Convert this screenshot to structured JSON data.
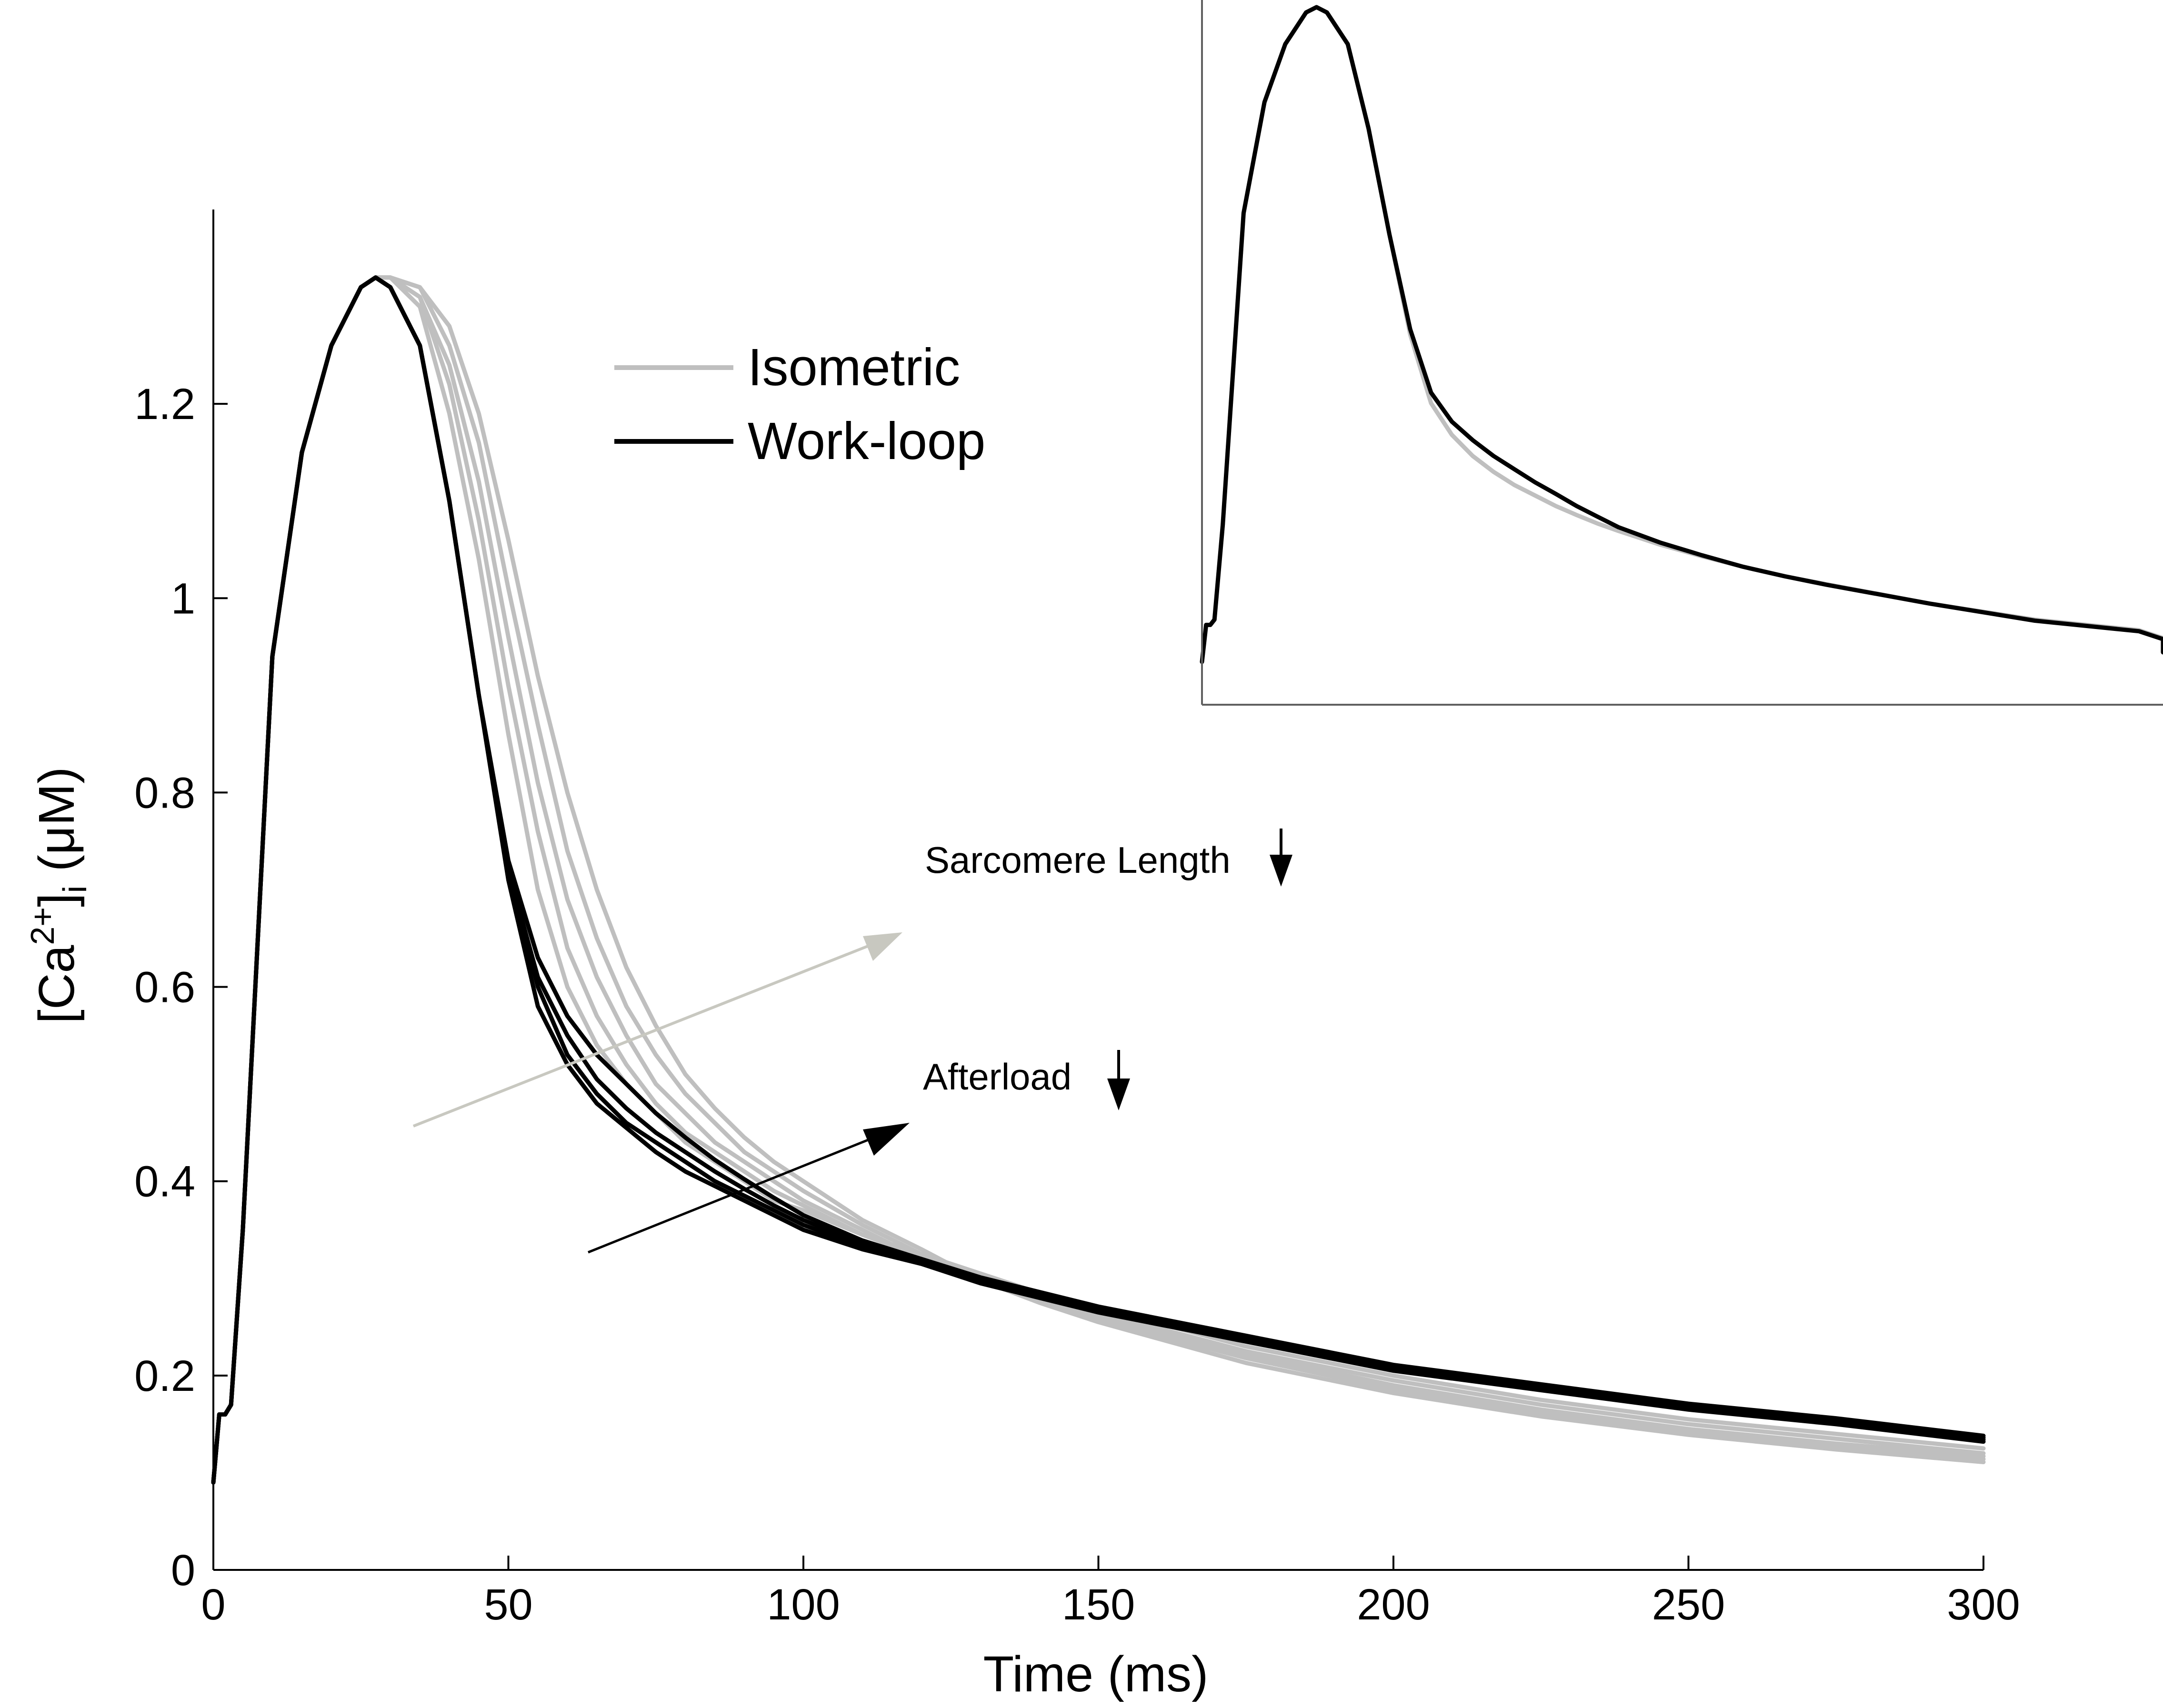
{
  "chart_data": [
    {
      "type": "line",
      "role": "main",
      "xlabel": "Time (ms)",
      "ylabel": {
        "base": "[Ca",
        "sup": "2+",
        "mid": "]",
        "sub": "i",
        "unit": " (μM)"
      },
      "xlim": [
        0,
        300
      ],
      "ylim": [
        0,
        1.4
      ],
      "xticks": [
        0,
        50,
        100,
        150,
        200,
        250,
        300
      ],
      "xtick_labels": [
        "0",
        "50",
        "100",
        "150",
        "200",
        "250",
        "300"
      ],
      "yticks": [
        0,
        0.2,
        0.4,
        0.6,
        0.8,
        1,
        1.2
      ],
      "ytick_labels": [
        "0",
        "0.2",
        "0.4",
        "0.6",
        "0.8",
        "1",
        "1.2"
      ],
      "grid": false,
      "legend": {
        "placement": "upper-center",
        "entries": [
          {
            "label": "Isometric",
            "color": "#bfbfbf"
          },
          {
            "label": "Work-loop",
            "color": "#000000"
          }
        ]
      },
      "series": [
        {
          "group": "Isometric",
          "color": "#bfbfbf",
          "x": [
            0,
            1,
            2,
            3,
            5,
            10,
            15,
            20,
            25,
            27.5,
            30,
            35,
            40,
            45,
            50,
            55,
            60,
            65,
            70,
            75,
            80,
            85,
            90,
            95,
            100,
            110,
            120,
            130,
            140,
            150,
            175,
            200,
            225,
            250,
            275,
            300
          ],
          "y": [
            0.09,
            0.16,
            0.16,
            0.17,
            0.35,
            0.94,
            1.15,
            1.26,
            1.32,
            1.33,
            1.33,
            1.3,
            1.19,
            1.04,
            0.86,
            0.7,
            0.6,
            0.54,
            0.5,
            0.47,
            0.44,
            0.42,
            0.4,
            0.38,
            0.37,
            0.345,
            0.325,
            0.305,
            0.285,
            0.27,
            0.23,
            0.2,
            0.175,
            0.155,
            0.14,
            0.125
          ]
        },
        {
          "group": "Isometric",
          "color": "#bfbfbf",
          "x": [
            0,
            1,
            2,
            3,
            5,
            10,
            15,
            20,
            25,
            27.5,
            30,
            35,
            40,
            45,
            50,
            55,
            60,
            65,
            70,
            75,
            80,
            85,
            90,
            95,
            100,
            110,
            120,
            130,
            140,
            150,
            175,
            200,
            225,
            250,
            275,
            300
          ],
          "y": [
            0.09,
            0.16,
            0.16,
            0.17,
            0.35,
            0.94,
            1.15,
            1.26,
            1.32,
            1.33,
            1.33,
            1.31,
            1.22,
            1.08,
            0.91,
            0.76,
            0.64,
            0.57,
            0.52,
            0.48,
            0.45,
            0.43,
            0.41,
            0.39,
            0.375,
            0.345,
            0.322,
            0.302,
            0.283,
            0.265,
            0.225,
            0.195,
            0.17,
            0.15,
            0.135,
            0.12
          ]
        },
        {
          "group": "Isometric",
          "color": "#bfbfbf",
          "x": [
            0,
            1,
            2,
            3,
            5,
            10,
            15,
            20,
            25,
            27.5,
            30,
            35,
            40,
            45,
            50,
            55,
            60,
            65,
            70,
            75,
            80,
            85,
            90,
            95,
            100,
            110,
            120,
            130,
            140,
            150,
            175,
            200,
            225,
            250,
            275,
            300
          ],
          "y": [
            0.09,
            0.16,
            0.16,
            0.17,
            0.35,
            0.94,
            1.15,
            1.26,
            1.32,
            1.33,
            1.33,
            1.31,
            1.24,
            1.12,
            0.96,
            0.81,
            0.69,
            0.61,
            0.55,
            0.5,
            0.47,
            0.44,
            0.42,
            0.4,
            0.38,
            0.35,
            0.32,
            0.3,
            0.28,
            0.262,
            0.222,
            0.19,
            0.165,
            0.145,
            0.13,
            0.117
          ]
        },
        {
          "group": "Isometric",
          "color": "#bfbfbf",
          "x": [
            0,
            1,
            2,
            3,
            5,
            10,
            15,
            20,
            25,
            27.5,
            30,
            35,
            40,
            45,
            50,
            55,
            60,
            65,
            70,
            75,
            80,
            85,
            90,
            95,
            100,
            110,
            120,
            130,
            140,
            150,
            175,
            200,
            225,
            250,
            275,
            300
          ],
          "y": [
            0.09,
            0.16,
            0.16,
            0.17,
            0.35,
            0.94,
            1.15,
            1.26,
            1.32,
            1.33,
            1.33,
            1.32,
            1.26,
            1.16,
            1.01,
            0.87,
            0.74,
            0.65,
            0.58,
            0.53,
            0.49,
            0.46,
            0.43,
            0.41,
            0.39,
            0.355,
            0.325,
            0.298,
            0.277,
            0.258,
            0.218,
            0.186,
            0.162,
            0.142,
            0.127,
            0.114
          ]
        },
        {
          "group": "Isometric",
          "color": "#bfbfbf",
          "x": [
            0,
            1,
            2,
            3,
            5,
            10,
            15,
            20,
            25,
            27.5,
            30,
            35,
            40,
            45,
            50,
            55,
            60,
            65,
            70,
            75,
            80,
            85,
            90,
            95,
            100,
            110,
            120,
            130,
            140,
            150,
            175,
            200,
            225,
            250,
            275,
            300
          ],
          "y": [
            0.09,
            0.16,
            0.16,
            0.17,
            0.35,
            0.94,
            1.15,
            1.26,
            1.32,
            1.33,
            1.33,
            1.32,
            1.28,
            1.19,
            1.06,
            0.92,
            0.8,
            0.7,
            0.62,
            0.56,
            0.51,
            0.475,
            0.445,
            0.42,
            0.4,
            0.36,
            0.33,
            0.298,
            0.275,
            0.255,
            0.213,
            0.182,
            0.158,
            0.139,
            0.124,
            0.111
          ]
        },
        {
          "group": "Work-loop",
          "color": "#000000",
          "x": [
            0,
            1,
            2,
            3,
            5,
            10,
            15,
            20,
            25,
            27.5,
            30,
            35,
            40,
            45,
            50,
            55,
            60,
            65,
            70,
            75,
            80,
            85,
            90,
            95,
            100,
            110,
            120,
            130,
            140,
            150,
            175,
            200,
            225,
            250,
            275,
            300
          ],
          "y": [
            0.09,
            0.16,
            0.16,
            0.17,
            0.35,
            0.94,
            1.15,
            1.26,
            1.32,
            1.33,
            1.32,
            1.26,
            1.1,
            0.9,
            0.71,
            0.58,
            0.52,
            0.48,
            0.455,
            0.43,
            0.41,
            0.395,
            0.38,
            0.365,
            0.35,
            0.33,
            0.315,
            0.295,
            0.28,
            0.265,
            0.235,
            0.205,
            0.185,
            0.165,
            0.15,
            0.132
          ]
        },
        {
          "group": "Work-loop",
          "color": "#000000",
          "x": [
            0,
            1,
            2,
            3,
            5,
            10,
            15,
            20,
            25,
            27.5,
            30,
            35,
            40,
            45,
            50,
            55,
            60,
            65,
            70,
            75,
            80,
            85,
            90,
            95,
            100,
            110,
            120,
            130,
            140,
            150,
            175,
            200,
            225,
            250,
            275,
            300
          ],
          "y": [
            0.09,
            0.16,
            0.16,
            0.17,
            0.35,
            0.94,
            1.15,
            1.26,
            1.32,
            1.33,
            1.32,
            1.26,
            1.1,
            0.9,
            0.72,
            0.6,
            0.53,
            0.49,
            0.46,
            0.44,
            0.42,
            0.4,
            0.385,
            0.37,
            0.355,
            0.333,
            0.316,
            0.297,
            0.282,
            0.267,
            0.237,
            0.207,
            0.187,
            0.167,
            0.152,
            0.134
          ]
        },
        {
          "group": "Work-loop",
          "color": "#000000",
          "x": [
            0,
            1,
            2,
            3,
            5,
            10,
            15,
            20,
            25,
            27.5,
            30,
            35,
            40,
            45,
            50,
            55,
            60,
            65,
            70,
            75,
            80,
            85,
            90,
            95,
            100,
            110,
            120,
            130,
            140,
            150,
            175,
            200,
            225,
            250,
            275,
            300
          ],
          "y": [
            0.09,
            0.16,
            0.16,
            0.17,
            0.35,
            0.94,
            1.15,
            1.26,
            1.32,
            1.33,
            1.32,
            1.26,
            1.1,
            0.9,
            0.72,
            0.61,
            0.55,
            0.505,
            0.475,
            0.45,
            0.43,
            0.41,
            0.392,
            0.375,
            0.36,
            0.336,
            0.318,
            0.299,
            0.284,
            0.269,
            0.239,
            0.209,
            0.189,
            0.169,
            0.154,
            0.136
          ]
        },
        {
          "group": "Work-loop",
          "color": "#000000",
          "x": [
            0,
            1,
            2,
            3,
            5,
            10,
            15,
            20,
            25,
            27.5,
            30,
            35,
            40,
            45,
            50,
            55,
            60,
            65,
            70,
            75,
            80,
            85,
            90,
            95,
            100,
            110,
            120,
            130,
            140,
            150,
            175,
            200,
            225,
            250,
            275,
            300
          ],
          "y": [
            0.09,
            0.16,
            0.16,
            0.17,
            0.35,
            0.94,
            1.15,
            1.26,
            1.32,
            1.33,
            1.32,
            1.26,
            1.1,
            0.9,
            0.73,
            0.63,
            0.57,
            0.53,
            0.5,
            0.47,
            0.445,
            0.422,
            0.402,
            0.383,
            0.365,
            0.339,
            0.32,
            0.301,
            0.286,
            0.271,
            0.241,
            0.211,
            0.191,
            0.171,
            0.156,
            0.138
          ]
        }
      ],
      "annotations": [
        {
          "text": "Sarcomere Length",
          "arrow": "down",
          "color": "#c8c8c0"
        },
        {
          "text": "Afterload",
          "arrow": "down",
          "color": "#000000"
        }
      ]
    },
    {
      "type": "line",
      "role": "inset",
      "xlim": [
        0,
        300
      ],
      "ylim": [
        0,
        1.4
      ],
      "axes_visible": [
        "left",
        "bottom"
      ],
      "ticks_visible": false,
      "series": [
        {
          "group": "Isometric",
          "color": "#bfbfbf",
          "x": [
            0,
            1,
            2,
            3,
            5,
            10,
            15,
            20,
            25,
            27.5,
            30,
            35,
            40,
            45,
            50,
            55,
            60,
            65,
            70,
            75,
            80,
            85,
            90,
            95,
            100,
            110,
            120,
            130,
            140,
            150,
            175,
            200,
            225,
            250,
            275,
            300
          ],
          "y": [
            0.09,
            0.16,
            0.16,
            0.17,
            0.35,
            0.94,
            1.15,
            1.26,
            1.32,
            1.33,
            1.32,
            1.26,
            1.1,
            0.9,
            0.71,
            0.58,
            0.52,
            0.48,
            0.45,
            0.425,
            0.405,
            0.385,
            0.368,
            0.352,
            0.338,
            0.312,
            0.29,
            0.27,
            0.252,
            0.237,
            0.2,
            0.17,
            0.15,
            0.135,
            0.12,
            0.11
          ]
        },
        {
          "group": "Work-loop",
          "color": "#000000",
          "x": [
            0,
            1,
            2,
            3,
            5,
            10,
            15,
            20,
            25,
            27.5,
            30,
            35,
            40,
            45,
            50,
            55,
            60,
            65,
            70,
            75,
            80,
            85,
            90,
            95,
            100,
            110,
            120,
            130,
            140,
            150,
            175,
            200,
            225,
            250,
            275,
            300
          ],
          "y": [
            0.09,
            0.16,
            0.16,
            0.17,
            0.35,
            0.94,
            1.15,
            1.26,
            1.32,
            1.33,
            1.32,
            1.26,
            1.1,
            0.9,
            0.72,
            0.6,
            0.545,
            0.51,
            0.48,
            0.455,
            0.43,
            0.408,
            0.385,
            0.365,
            0.345,
            0.316,
            0.292,
            0.27,
            0.252,
            0.236,
            0.2,
            0.168,
            0.148,
            0.133,
            0.118,
            0.108
          ]
        }
      ]
    }
  ]
}
